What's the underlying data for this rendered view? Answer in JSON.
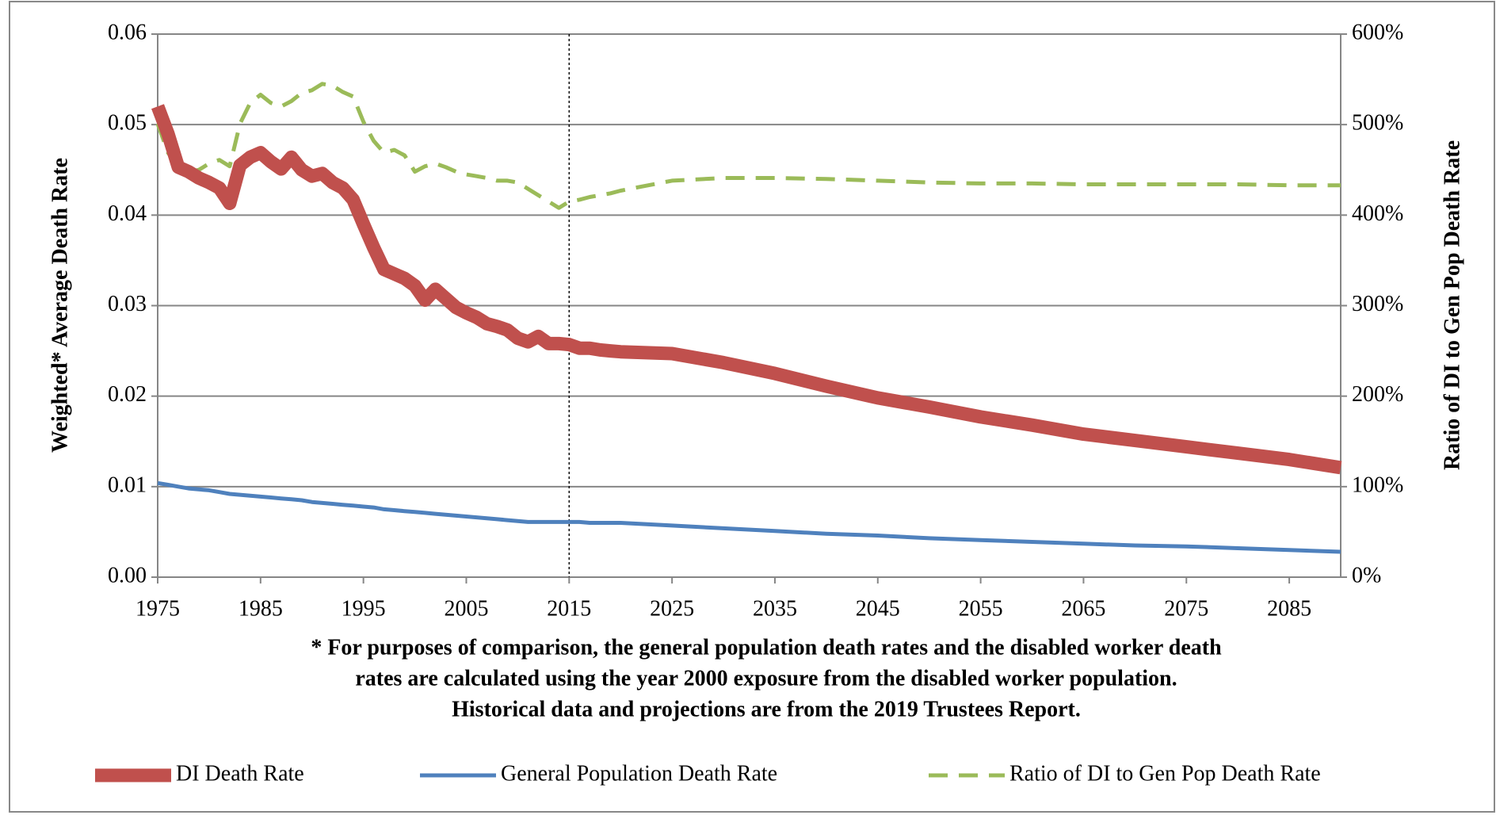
{
  "chart_data": {
    "type": "line",
    "y_label": "Weighted* Average Death Rate",
    "y2_label": "Ratio of DI to Gen Pop Death Rate",
    "footnote": [
      "* For purposes of comparison, the general population death rates and the disabled worker death",
      "rates are calculated using the year 2000 exposure from the disabled worker population.",
      "Historical data and projections are from the 2019 Trustees Report."
    ],
    "x": [
      1975,
      1976,
      1977,
      1978,
      1979,
      1980,
      1981,
      1982,
      1983,
      1984,
      1985,
      1986,
      1987,
      1988,
      1989,
      1990,
      1991,
      1992,
      1993,
      1994,
      1995,
      1996,
      1997,
      1998,
      1999,
      2000,
      2001,
      2002,
      2003,
      2004,
      2005,
      2006,
      2007,
      2008,
      2009,
      2010,
      2011,
      2012,
      2013,
      2014,
      2015,
      2016,
      2017,
      2018,
      2019,
      2020,
      2025,
      2030,
      2035,
      2040,
      2045,
      2050,
      2055,
      2060,
      2065,
      2070,
      2075,
      2080,
      2085,
      2090
    ],
    "series": [
      {
        "name": "DI Death Rate",
        "color": "#c0504d",
        "width": 17,
        "dash": false,
        "values": [
          0.052,
          0.049,
          0.0453,
          0.0448,
          0.0441,
          0.0436,
          0.043,
          0.0413,
          0.0455,
          0.0464,
          0.0469,
          0.0459,
          0.0451,
          0.0464,
          0.045,
          0.0443,
          0.0446,
          0.0436,
          0.043,
          0.0417,
          0.039,
          0.0364,
          0.034,
          0.0335,
          0.033,
          0.0322,
          0.0306,
          0.0318,
          0.0308,
          0.0298,
          0.0292,
          0.0287,
          0.028,
          0.0277,
          0.0273,
          0.0264,
          0.026,
          0.0266,
          0.0258,
          0.0258,
          0.0257,
          0.0253,
          0.0253,
          0.0251,
          0.025,
          0.0249,
          0.0247,
          0.0237,
          0.0225,
          0.0211,
          0.0198,
          0.0188,
          0.0177,
          0.0168,
          0.0158,
          0.0151,
          0.0144,
          0.0137,
          0.013,
          0.0121
        ]
      },
      {
        "name": "General Population Death Rate",
        "color": "#4f81bd",
        "width": 5,
        "dash": false,
        "values": [
          0.0104,
          0.0102,
          0.01,
          0.0098,
          0.0097,
          0.0096,
          0.0094,
          0.0092,
          0.0091,
          0.009,
          0.0089,
          0.0088,
          0.0087,
          0.0086,
          0.0085,
          0.0083,
          0.0082,
          0.0081,
          0.008,
          0.0079,
          0.0078,
          0.0077,
          0.0075,
          0.0074,
          0.0073,
          0.0072,
          0.0071,
          0.007,
          0.0069,
          0.0068,
          0.0067,
          0.0066,
          0.0065,
          0.0064,
          0.0063,
          0.0062,
          0.0061,
          0.0061,
          0.0061,
          0.0061,
          0.0061,
          0.0061,
          0.006,
          0.006,
          0.006,
          0.006,
          0.0057,
          0.0054,
          0.0051,
          0.0048,
          0.0046,
          0.0043,
          0.0041,
          0.0039,
          0.0037,
          0.0035,
          0.0034,
          0.0032,
          0.003,
          0.0028
        ]
      },
      {
        "name": "Ratio of DI to Gen Pop Death Rate",
        "color": "#9bbb59",
        "width": 5,
        "dash": true,
        "axis": "y2",
        "values": [
          501,
          469,
          454,
          448,
          450,
          457,
          461,
          454,
          501,
          524,
          533,
          524,
          520,
          526,
          535,
          538,
          545,
          543,
          536,
          531,
          503,
          482,
          469,
          472,
          466,
          448,
          454,
          457,
          453,
          448,
          445,
          443,
          441,
          438,
          438,
          436,
          429,
          422,
          415,
          408,
          415,
          417,
          420,
          422,
          424,
          427,
          438,
          441,
          441,
          440,
          438,
          436,
          435,
          435,
          434,
          434,
          434,
          434,
          433,
          433
        ]
      }
    ],
    "xlim": [
      1975,
      2090
    ],
    "xticks": [
      1975,
      1985,
      1995,
      2005,
      2015,
      2025,
      2035,
      2045,
      2055,
      2065,
      2075,
      2085
    ],
    "ylim": [
      0,
      0.06
    ],
    "yticks": [
      {
        "value": 0,
        "label": "0.00"
      },
      0.01,
      0.02,
      0.03,
      0.04,
      0.05,
      0.06
    ],
    "y2lim": [
      0,
      600
    ],
    "y2ticks": [
      {
        "value": 0,
        "label": "0%"
      },
      {
        "value": 100,
        "label": "100%"
      },
      {
        "value": 200,
        "label": "200%"
      },
      {
        "value": 300,
        "label": "300%"
      },
      {
        "value": 400,
        "label": "400%"
      },
      {
        "value": 500,
        "label": "500%"
      },
      {
        "value": 600,
        "label": "600%"
      }
    ],
    "reference_line_x": 2015,
    "grid": true,
    "legend": "bottom"
  }
}
